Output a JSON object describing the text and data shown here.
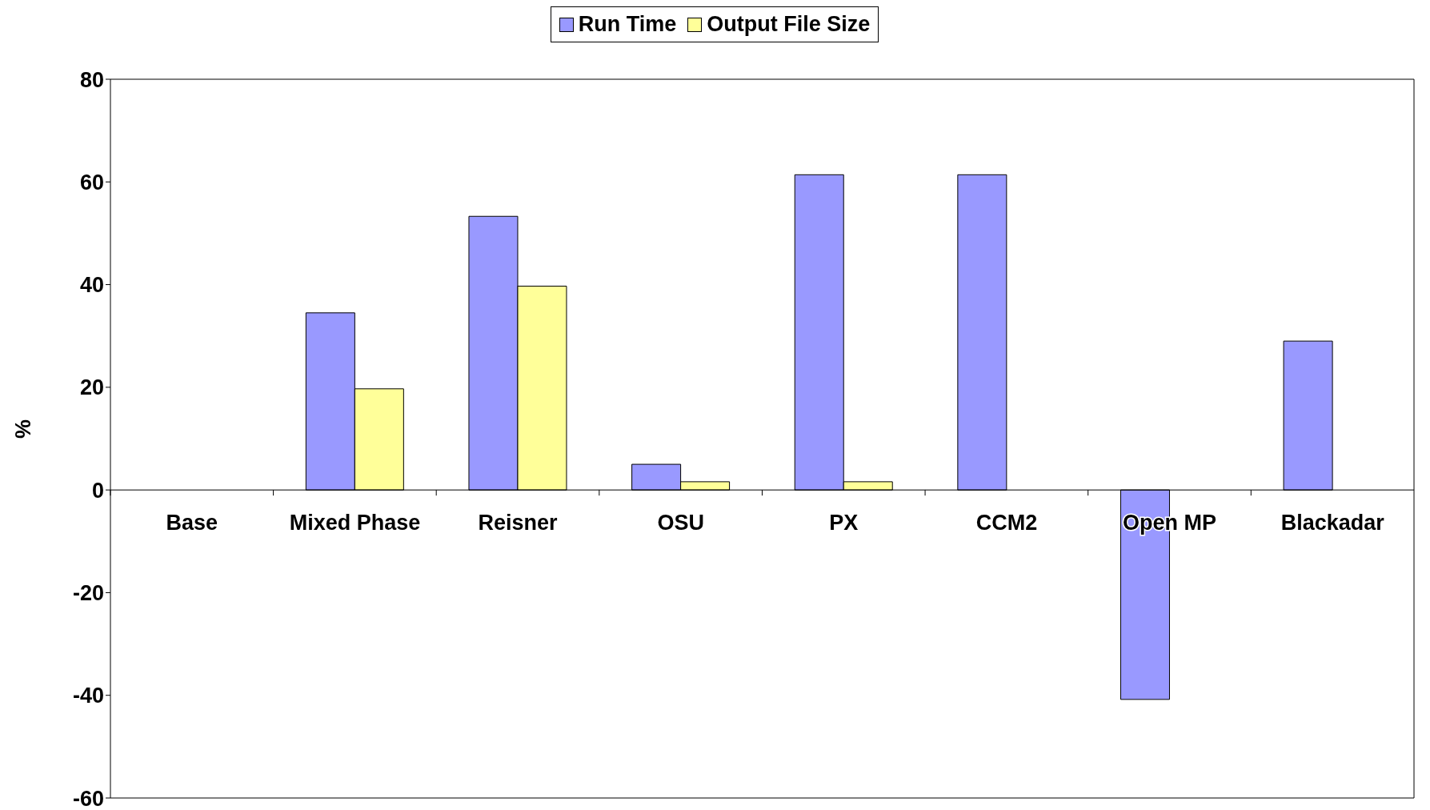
{
  "chart_data": {
    "type": "bar",
    "ylabel": "%",
    "categories": [
      "Base",
      "Mixed Phase",
      "Reisner",
      "OSU",
      "PX",
      "CCM2",
      "Open MP",
      "Blackadar"
    ],
    "series": [
      {
        "name": "Run Time",
        "color": "#9999ff",
        "values": [
          0,
          34.5,
          53.3,
          5,
          61.4,
          61.4,
          -40.8,
          29
        ]
      },
      {
        "name": "Output File Size",
        "color": "#ffff99",
        "values": [
          0,
          19.7,
          39.7,
          1.6,
          1.6,
          0,
          0,
          0
        ]
      }
    ],
    "ylim": [
      -60,
      80
    ],
    "yticks": [
      -60,
      -40,
      -20,
      0,
      20,
      40,
      60,
      80
    ],
    "grid": false,
    "legend": "top"
  }
}
